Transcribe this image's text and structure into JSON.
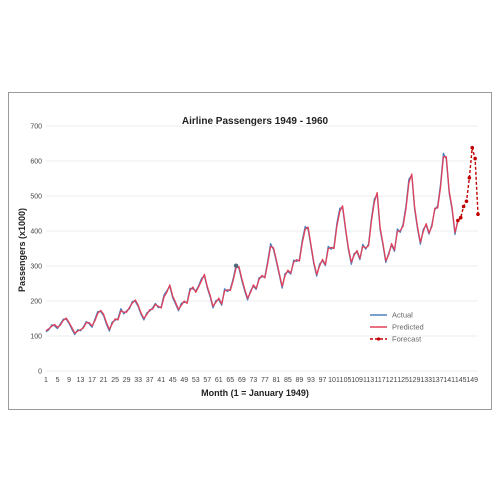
{
  "chart_data": {
    "type": "line",
    "title": "Airline Passengers 1949 - 1960",
    "xlabel": "Month (1 = January 1949)",
    "ylabel": "Passengers (x1000)",
    "xlim": [
      1,
      151
    ],
    "ylim": [
      0,
      700
    ],
    "yticks": [
      0,
      100,
      200,
      300,
      400,
      500,
      600,
      700
    ],
    "xticks": [
      1,
      5,
      9,
      13,
      17,
      21,
      25,
      29,
      33,
      37,
      41,
      45,
      49,
      53,
      57,
      61,
      65,
      69,
      73,
      77,
      81,
      85,
      89,
      93,
      97,
      101,
      105,
      109,
      113,
      117,
      121,
      125,
      129,
      133,
      137,
      141,
      145,
      149
    ],
    "grid": true,
    "legend_position": "lower-right",
    "series": [
      {
        "name": "Actual",
        "color": "#4f81bd",
        "style": "solid",
        "x_start": 1,
        "values": [
          112,
          118,
          132,
          129,
          121,
          135,
          148,
          148,
          136,
          119,
          104,
          118,
          115,
          126,
          141,
          135,
          125,
          149,
          170,
          170,
          158,
          133,
          114,
          140,
          145,
          150,
          178,
          163,
          172,
          178,
          199,
          199,
          184,
          162,
          146,
          166,
          171,
          180,
          193,
          181,
          183,
          218,
          230,
          242,
          209,
          191,
          172,
          194,
          196,
          196,
          236,
          235,
          229,
          243,
          264,
          272,
          237,
          211,
          180,
          201,
          204,
          188,
          235,
          227,
          234,
          264,
          302,
          293,
          259,
          229,
          203,
          229,
          242,
          233,
          267,
          269,
          270,
          315,
          364,
          347,
          312,
          274,
          237,
          278,
          284,
          277,
          317,
          313,
          318,
          374,
          413,
          405,
          355,
          306,
          271,
          306,
          315,
          301,
          356,
          348,
          355,
          422,
          465,
          467,
          404,
          347,
          305,
          336,
          340,
          318,
          362,
          348,
          363,
          435,
          491,
          505,
          404,
          359,
          310,
          337,
          360,
          342,
          406,
          396,
          420,
          472,
          548,
          559,
          463,
          407,
          362,
          405,
          417,
          391,
          419,
          461,
          472,
          535,
          622,
          606,
          508,
          461,
          390,
          432
        ]
      },
      {
        "name": "Predicted",
        "color": "#e0405a",
        "style": "solid",
        "x_start": 1,
        "values": [
          115,
          121,
          128,
          133,
          125,
          131,
          145,
          151,
          139,
          124,
          108,
          114,
          118,
          123,
          138,
          138,
          129,
          144,
          165,
          173,
          162,
          138,
          119,
          135,
          149,
          146,
          172,
          168,
          168,
          182,
          194,
          203,
          188,
          166,
          150,
          161,
          175,
          177,
          190,
          185,
          180,
          212,
          226,
          246,
          214,
          196,
          176,
          188,
          200,
          193,
          230,
          240,
          225,
          240,
          258,
          276,
          241,
          216,
          185,
          196,
          208,
          192,
          229,
          232,
          230,
          259,
          295,
          298,
          264,
          234,
          208,
          224,
          246,
          236,
          262,
          273,
          266,
          309,
          356,
          352,
          317,
          279,
          242,
          272,
          288,
          280,
          311,
          318,
          314,
          366,
          405,
          411,
          360,
          311,
          276,
          300,
          319,
          304,
          349,
          353,
          350,
          414,
          456,
          472,
          409,
          352,
          311,
          331,
          344,
          322,
          356,
          352,
          358,
          427,
          482,
          510,
          410,
          364,
          315,
          332,
          364,
          346,
          399,
          401,
          414,
          464,
          538,
          563,
          469,
          412,
          368,
          399,
          421,
          395,
          413,
          465,
          466,
          526,
          612,
          612,
          514,
          466,
          396,
          426
        ]
      },
      {
        "name": "Forecast",
        "color": "#c00000",
        "style": "dashed-markers",
        "x": [
          144,
          145,
          146,
          147,
          148,
          149,
          150,
          151
        ],
        "values": [
          430,
          438,
          470,
          485,
          552,
          638,
          607,
          448
        ]
      }
    ],
    "annotations": [
      {
        "type": "point",
        "x": 67,
        "y": 301
      }
    ]
  }
}
